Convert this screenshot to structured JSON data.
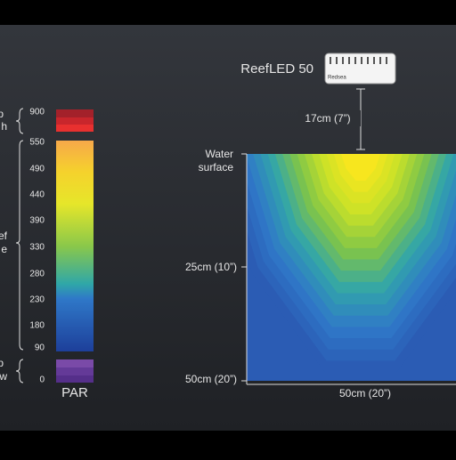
{
  "scale": {
    "ticks": [
      900,
      550,
      490,
      440,
      390,
      330,
      280,
      230,
      180,
      90,
      0
    ],
    "label": "PAR",
    "groups": [
      [
        "p",
        "h"
      ],
      [
        "ef",
        "e"
      ],
      [
        "p",
        "w"
      ]
    ]
  },
  "device": {
    "name": "ReefLED 50",
    "brand": "Redsea",
    "distance": "17cm (7”)"
  },
  "map": {
    "surface": [
      "Water",
      "surface"
    ],
    "depth_ticks": [
      "25cm (10”)",
      "50cm (20”)"
    ],
    "width_label": "50cm (20”)"
  }
}
